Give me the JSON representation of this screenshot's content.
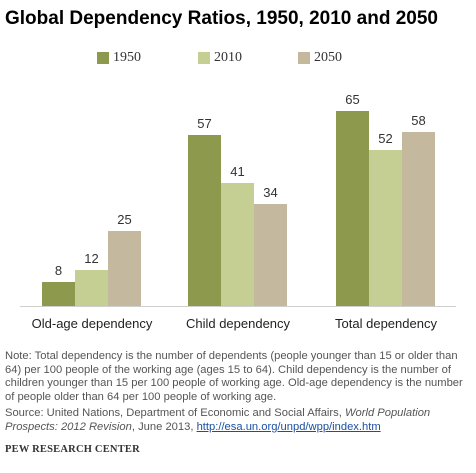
{
  "title": "Global Dependency Ratios, 1950, 2010 and 2050",
  "note": "Note: Total dependency is the number of dependents (people younger than 15 or older than 64) per 100 people of the working age (ages 15 to 64). Child dependency is the number of children younger than 15 per 100 people of working age. Old-age dependency is the number of people older than 64 per 100 people of working age.",
  "source": {
    "prefix": "Source: United Nations, Department of Economic and Social Affairs, ",
    "publication": "World Population Prospects: 2012 Revision",
    "middle": ", June 2013, ",
    "link": "http://esa.un.org/unpd/wpp/index.htm"
  },
  "footer": "PEW RESEARCH CENTER",
  "colors": {
    "1950": "#8d9a4e",
    "2010": "#c6cf93",
    "2050": "#c4b89f"
  },
  "chart_data": {
    "type": "bar",
    "title": "Global Dependency Ratios, 1950, 2010 and 2050",
    "categories": [
      "Old-age dependency",
      "Child dependency",
      "Total dependency"
    ],
    "series": [
      {
        "name": "1950",
        "values": [
          8,
          57,
          65
        ]
      },
      {
        "name": "2010",
        "values": [
          12,
          41,
          52
        ]
      },
      {
        "name": "2050",
        "values": [
          25,
          34,
          58
        ]
      }
    ],
    "ylim": [
      0,
      65
    ],
    "grid": false,
    "legend": "top",
    "data_labels": true
  }
}
